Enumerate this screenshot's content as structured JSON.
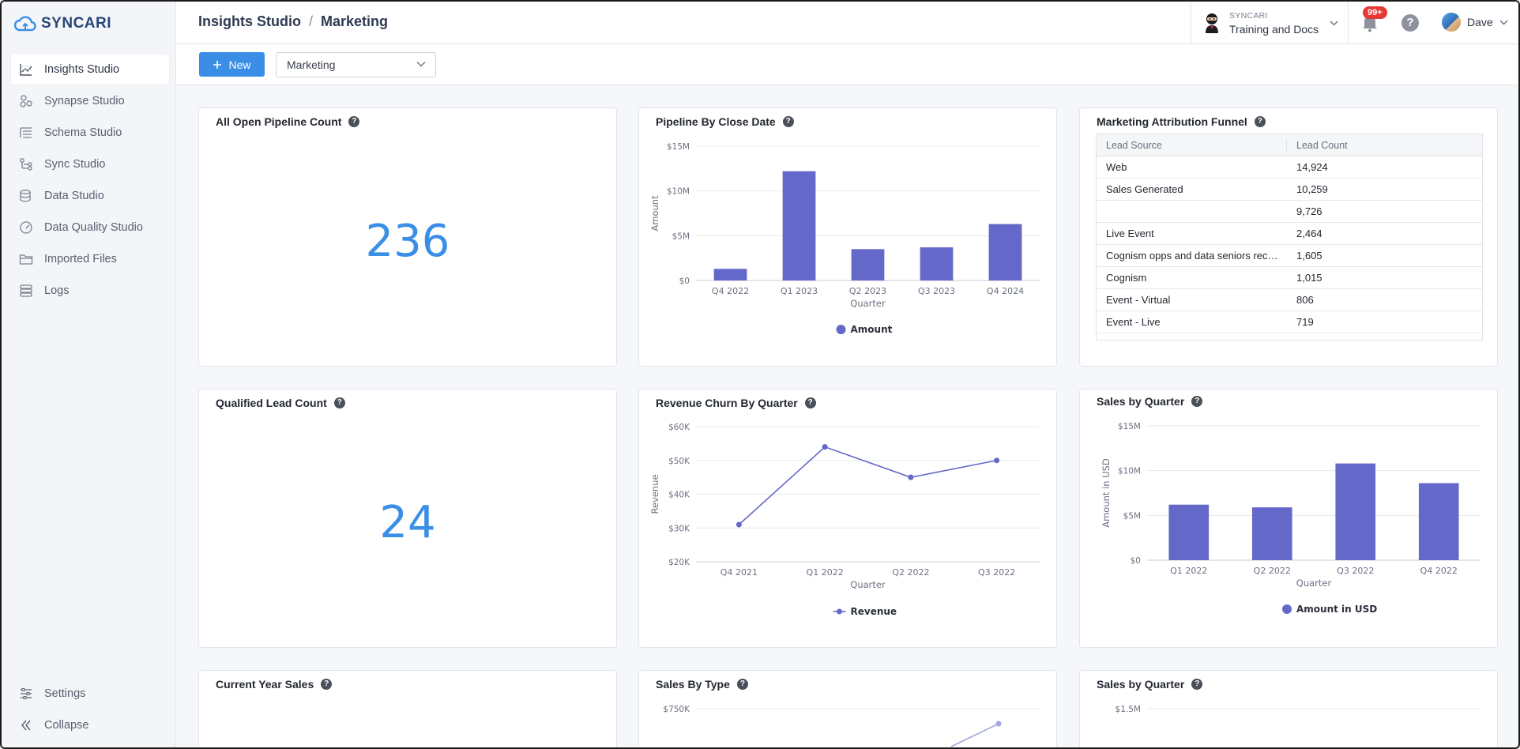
{
  "app": {
    "logo_text": "SYNCARI"
  },
  "sidebar": {
    "items": [
      {
        "label": "Insights Studio",
        "icon": "chart-icon",
        "active": true
      },
      {
        "label": "Synapse Studio",
        "icon": "synapse-icon"
      },
      {
        "label": "Schema Studio",
        "icon": "schema-icon"
      },
      {
        "label": "Sync Studio",
        "icon": "sync-icon"
      },
      {
        "label": "Data Studio",
        "icon": "database-icon"
      },
      {
        "label": "Data Quality Studio",
        "icon": "gauge-icon"
      },
      {
        "label": "Imported Files",
        "icon": "folder-icon"
      },
      {
        "label": "Logs",
        "icon": "logs-icon"
      }
    ],
    "bottom": [
      {
        "label": "Settings",
        "icon": "sliders-icon"
      },
      {
        "label": "Collapse",
        "icon": "collapse-icon"
      }
    ]
  },
  "header": {
    "breadcrumb": [
      "Insights Studio",
      "Marketing"
    ],
    "separator": "/",
    "org_label": "SYNCARI",
    "org_name": "Training and Docs",
    "notifications": "99+",
    "help": "?",
    "user": "Dave"
  },
  "toolbar": {
    "new_label": "New",
    "dashboard_select": "Marketing"
  },
  "cards": {
    "open_pipeline": {
      "title": "All Open Pipeline Count",
      "value": "236"
    },
    "qualified_leads": {
      "title": "Qualified Lead Count",
      "value": "24"
    },
    "current_year_sales": {
      "title": "Current Year Sales"
    },
    "pipeline_by_close": {
      "title": "Pipeline By Close Date"
    },
    "attribution": {
      "title": "Marketing Attribution Funnel",
      "columns": [
        "Lead Source",
        "Lead Count"
      ],
      "rows": [
        [
          "Web",
          "14,924"
        ],
        [
          "Sales Generated",
          "10,259"
        ],
        [
          "",
          "9,726"
        ],
        [
          "Live Event",
          "2,464"
        ],
        [
          "Cognism opps and data seniors rece...",
          "1,605"
        ],
        [
          "Cognism",
          "1,015"
        ],
        [
          "Event - Virtual",
          "806"
        ],
        [
          "Event - Live",
          "719"
        ]
      ]
    },
    "revenue_churn": {
      "title": "Revenue Churn By Quarter"
    },
    "sales_by_quarter": {
      "title": "Sales by Quarter"
    },
    "sales_by_type": {
      "title": "Sales By Type"
    },
    "sales_by_quarter_2": {
      "title": "Sales by Quarter"
    }
  },
  "chart_data": [
    {
      "id": "pipeline",
      "type": "bar",
      "categories": [
        "Q4 2022",
        "Q1 2023",
        "Q2 2023",
        "Q3 2023",
        "Q4 2024"
      ],
      "series": [
        {
          "name": "Amount",
          "values": [
            1.3,
            12.2,
            3.5,
            3.7,
            6.3
          ]
        }
      ],
      "yticks": [
        "$0",
        "$5M",
        "$10M",
        "$15M"
      ],
      "ylim": [
        0,
        15
      ],
      "xlabel": "Quarter",
      "ylabel": "Amount",
      "color": "#6468c8",
      "legend": "bottom"
    },
    {
      "id": "churn",
      "type": "line",
      "categories": [
        "Q4 2021",
        "Q1 2022",
        "Q2 2022",
        "Q3 2022"
      ],
      "series": [
        {
          "name": "Revenue",
          "values": [
            31,
            54,
            45,
            50
          ]
        }
      ],
      "yticks": [
        "$20K",
        "$30K",
        "$40K",
        "$50K",
        "$60K"
      ],
      "ylim": [
        20,
        60
      ],
      "xlabel": "Quarter",
      "ylabel": "Revenue",
      "color": "#6468c8",
      "legend": "bottom"
    },
    {
      "id": "salesq",
      "type": "bar",
      "categories": [
        "Q1 2022",
        "Q2 2022",
        "Q3 2022",
        "Q4 2022"
      ],
      "series": [
        {
          "name": "Amount in USD",
          "values": [
            6.2,
            5.9,
            10.8,
            8.6
          ]
        }
      ],
      "yticks": [
        "$0",
        "$5M",
        "$10M",
        "$15M"
      ],
      "ylim": [
        0,
        15
      ],
      "xlabel": "Quarter",
      "ylabel": "Amount in USD",
      "color": "#6468c8",
      "legend": "bottom"
    },
    {
      "id": "salestype",
      "type": "line",
      "yticks": [
        "$750K"
      ],
      "color": "#a4a7e0"
    },
    {
      "id": "salesq2",
      "type": "bar",
      "yticks": [
        "$1.5M"
      ]
    }
  ]
}
